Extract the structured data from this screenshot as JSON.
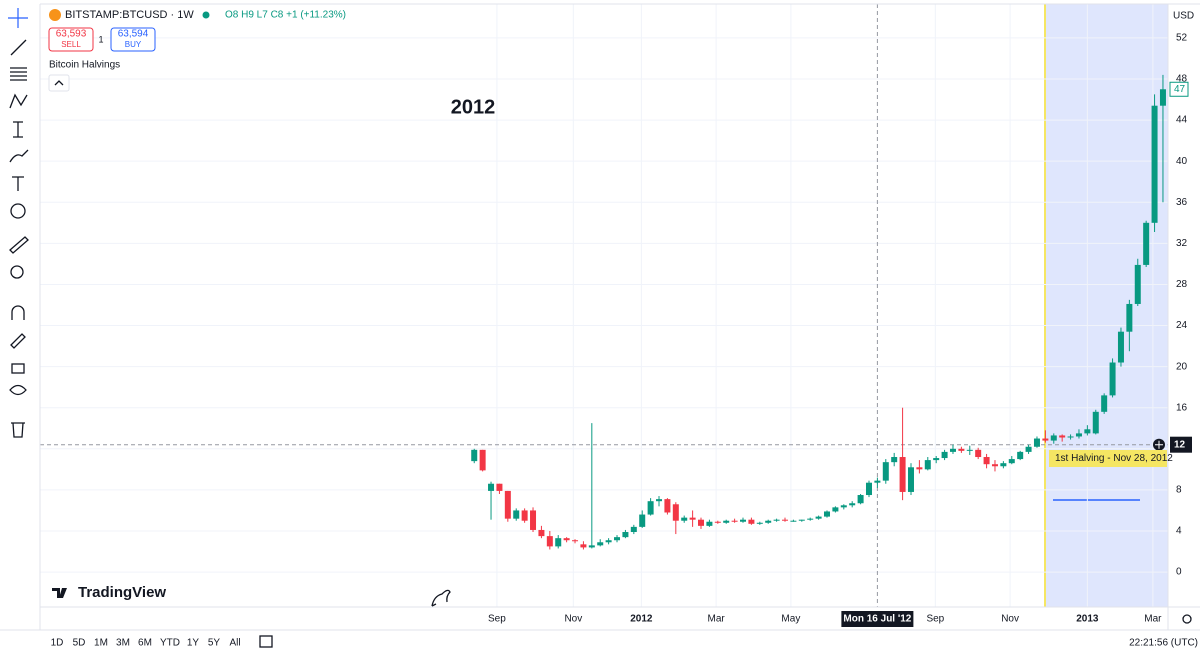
{
  "header": {
    "symbol": "BITSTAMP:BTCUSD · 1W",
    "ohlc": "O8 H9 L7 C8 +1 (+11.23%)",
    "sell_price": "63,593",
    "sell": "SELL",
    "spread": "1",
    "buy_price": "63,594",
    "buy": "BUY",
    "indicator": "Bitcoin Halvings"
  },
  "chart_data": {
    "type": "candlestick",
    "annotation": "2012",
    "halving_label": "1st Halving - Nov 28, 2012",
    "currency": "USD",
    "open": [
      10.8,
      11.9,
      7.9,
      8.6,
      7.9,
      5.2,
      6.0,
      6.0,
      4.1,
      3.5,
      2.5,
      3.3,
      3.1,
      2.7,
      2.4,
      2.6,
      2.9,
      3.1,
      3.4,
      3.9,
      4.4,
      5.6,
      6.9,
      7.1,
      6.6,
      5.0,
      5.3,
      5.1,
      4.5,
      4.9,
      4.8,
      5.0,
      4.9,
      5.1,
      4.7,
      4.8,
      5.0,
      5.1,
      5.0,
      5.0,
      5.1,
      5.2,
      5.4,
      5.9,
      6.3,
      6.5,
      6.7,
      7.5,
      8.7,
      8.9,
      10.7,
      11.2,
      7.8,
      10.2,
      10.0,
      10.9,
      11.1,
      11.7,
      12.0,
      11.8,
      11.9,
      11.2,
      10.5,
      10.3,
      10.6,
      11.0,
      11.7,
      12.2,
      13.0,
      12.8,
      13.3,
      13.1,
      13.2,
      13.5,
      13.5,
      15.6,
      17.2,
      20.4,
      23.4,
      26.1,
      29.9,
      34.0,
      45.4
    ],
    "high": [
      12.0,
      11.9,
      8.8,
      8.6,
      7.9,
      6.2,
      6.2,
      6.3,
      4.5,
      4.0,
      3.6,
      3.4,
      3.2,
      3.0,
      14.5,
      3.2,
      3.3,
      3.6,
      4.1,
      4.6,
      6.0,
      7.2,
      7.4,
      7.2,
      6.8,
      5.5,
      6.0,
      5.3,
      5.1,
      5.0,
      5.1,
      5.2,
      5.3,
      5.3,
      4.9,
      5.1,
      5.2,
      5.3,
      5.1,
      5.1,
      5.3,
      5.5,
      6.0,
      6.4,
      6.6,
      6.9,
      7.6,
      8.9,
      9.2,
      11.0,
      11.6,
      16.0,
      10.6,
      10.9,
      11.2,
      11.3,
      11.9,
      12.4,
      12.2,
      12.3,
      12.1,
      11.5,
      10.9,
      10.8,
      11.3,
      11.8,
      12.4,
      13.2,
      13.8,
      13.5,
      13.4,
      13.4,
      13.9,
      14.3,
      15.8,
      17.4,
      20.8,
      23.8,
      26.5,
      30.5,
      34.2,
      46.5,
      48.4
    ],
    "low": [
      10.6,
      9.8,
      5.1,
      7.6,
      4.9,
      5.0,
      4.8,
      3.9,
      3.3,
      2.2,
      2.3,
      2.9,
      2.8,
      2.2,
      2.3,
      2.5,
      2.7,
      2.9,
      3.3,
      3.7,
      4.3,
      5.5,
      6.4,
      5.6,
      3.7,
      4.8,
      4.4,
      4.2,
      4.4,
      4.7,
      4.7,
      4.8,
      4.8,
      4.6,
      4.6,
      4.7,
      4.9,
      4.9,
      4.9,
      4.9,
      5.0,
      5.1,
      5.3,
      5.8,
      6.1,
      6.3,
      6.6,
      7.3,
      8.2,
      8.6,
      10.3,
      7.0,
      7.5,
      9.6,
      9.9,
      10.6,
      10.9,
      11.5,
      11.6,
      11.4,
      11.0,
      10.1,
      9.8,
      10.1,
      10.5,
      10.9,
      11.5,
      12.1,
      12.6,
      12.5,
      12.7,
      12.9,
      13.0,
      13.3,
      13.4,
      15.4,
      17.0,
      20.0,
      21.5,
      25.9,
      29.7,
      33.1,
      36.0
    ],
    "close": [
      11.9,
      9.9,
      8.6,
      7.9,
      5.2,
      6.0,
      5.0,
      4.1,
      3.5,
      2.5,
      3.3,
      3.1,
      3.0,
      2.4,
      2.6,
      2.9,
      3.1,
      3.4,
      3.9,
      4.4,
      5.6,
      6.9,
      7.1,
      5.8,
      5.0,
      5.3,
      5.1,
      4.5,
      4.9,
      4.8,
      5.0,
      4.9,
      5.1,
      4.7,
      4.8,
      5.0,
      5.1,
      5.0,
      5.0,
      5.1,
      5.2,
      5.4,
      5.9,
      6.3,
      6.5,
      6.7,
      7.5,
      8.7,
      8.9,
      10.7,
      11.2,
      7.8,
      10.2,
      10.0,
      10.9,
      11.1,
      11.7,
      12.0,
      11.8,
      11.9,
      11.2,
      10.5,
      10.3,
      10.6,
      11.0,
      11.7,
      12.2,
      13.0,
      12.8,
      13.3,
      13.1,
      13.2,
      13.5,
      13.9,
      15.6,
      17.2,
      20.4,
      23.4,
      26.1,
      29.9,
      34.0,
      45.4,
      47.0
    ],
    "up_color": "#089981",
    "down_color": "#f23645",
    "ylim": [
      -3.4,
      55.3
    ],
    "yticks": [
      0,
      4,
      8,
      12,
      16,
      20,
      24,
      28,
      32,
      36,
      40,
      44,
      48,
      52
    ],
    "xlim": [
      -51.7,
      82.6
    ],
    "xticks": [
      {
        "value": 2.7,
        "label": "Sep"
      },
      {
        "value": 11.8,
        "label": "Nov"
      },
      {
        "value": 19.9,
        "label": "2012"
      },
      {
        "value": 28.8,
        "label": "Mar"
      },
      {
        "value": 37.7,
        "label": "May"
      },
      {
        "value": 54.9,
        "label": "Sep"
      },
      {
        "value": 63.8,
        "label": "Nov"
      },
      {
        "value": 73,
        "label": "2013"
      },
      {
        "value": 80.8,
        "label": "Mar"
      }
    ],
    "crosshair": {
      "value": 48,
      "label": "Mon 16 Jul '12"
    },
    "last_price": {
      "value": 12.4,
      "label": "12"
    },
    "price_label": 47
  },
  "branding": "TradingView",
  "footer": {
    "ranges": [
      "1D",
      "5D",
      "1M",
      "3M",
      "6M",
      "YTD",
      "1Y",
      "5Y",
      "All"
    ],
    "time": "22:21:56 (UTC)"
  }
}
